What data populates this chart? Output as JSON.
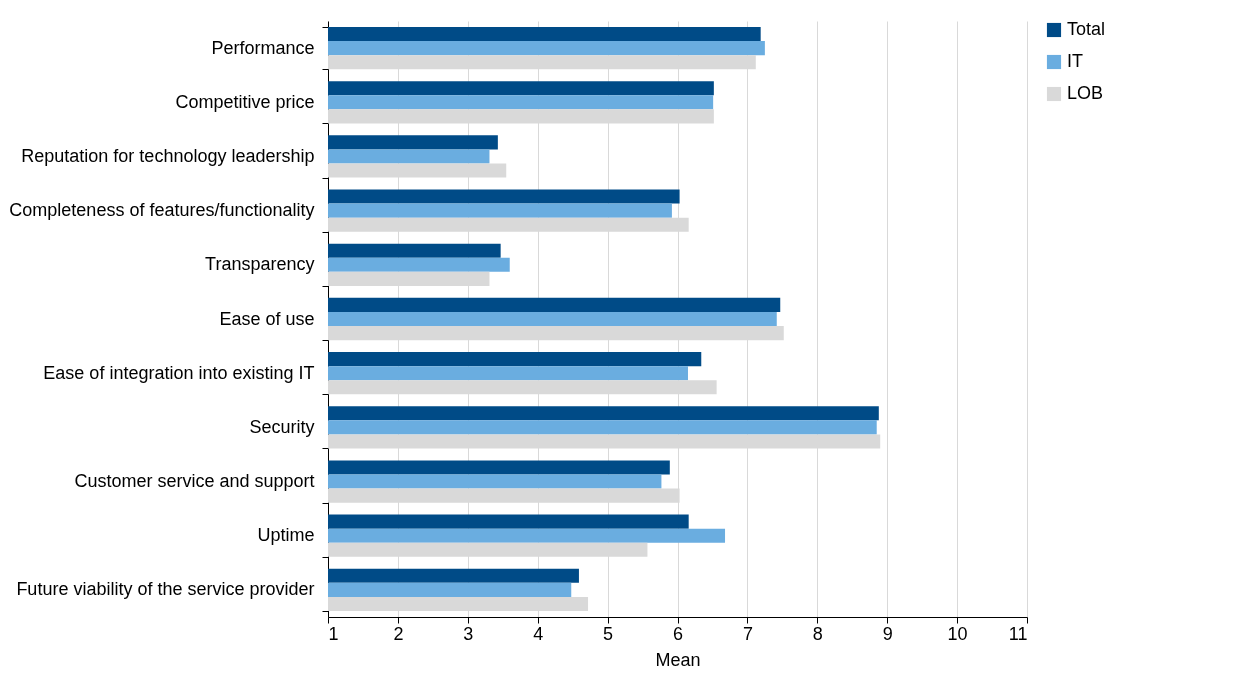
{
  "chart_data": {
    "type": "bar",
    "orientation": "horizontal",
    "xlabel": "Mean",
    "categories": [
      "Performance",
      "Competitive price",
      "Reputation for technology leadership",
      "Completeness of features/functionality",
      "Transparency",
      "Ease of use",
      "Ease of integration into existing IT",
      "Security",
      "Customer service and support",
      "Uptime",
      "Future viability of the service provider"
    ],
    "series": [
      {
        "name": "Total",
        "color": "#004b87",
        "values": [
          7.19,
          6.52,
          3.43,
          6.03,
          3.47,
          7.47,
          6.34,
          8.88,
          5.89,
          6.16,
          4.59
        ]
      },
      {
        "name": "IT",
        "color": "#6aade0",
        "values": [
          7.25,
          6.51,
          3.31,
          5.92,
          3.6,
          7.42,
          6.15,
          8.85,
          5.77,
          6.68,
          4.48
        ]
      },
      {
        "name": "LOB",
        "color": "#d9d9d9",
        "values": [
          7.12,
          6.52,
          3.55,
          6.16,
          3.31,
          7.52,
          6.56,
          8.9,
          6.03,
          5.57,
          4.72
        ]
      }
    ],
    "xlim": [
      1,
      11
    ],
    "xticks": [
      1,
      2,
      3,
      4,
      5,
      6,
      7,
      8,
      9,
      10,
      11
    ],
    "grid": "x",
    "legend": "right"
  }
}
